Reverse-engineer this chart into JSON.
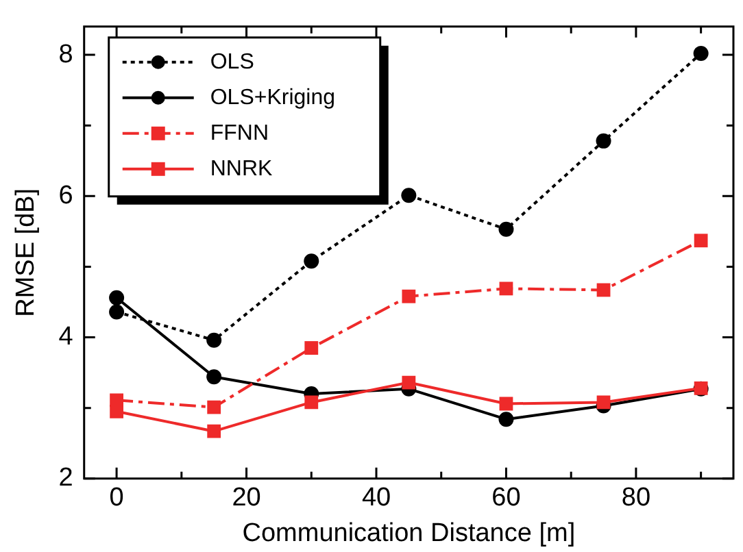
{
  "chart_data": {
    "type": "line",
    "xlabel": "Communication Distance [m]",
    "ylabel": "RMSE [dB]",
    "x": [
      0,
      15,
      30,
      45,
      60,
      75,
      90
    ],
    "xlim": [
      -5,
      95
    ],
    "xticks": [
      0,
      {
        "value": 10,
        "label": null
      },
      20,
      {
        "value": 30,
        "label": null
      },
      40,
      {
        "value": 50,
        "label": null
      },
      60,
      {
        "value": 70,
        "label": null
      },
      80,
      {
        "value": 90,
        "label": null
      }
    ],
    "ylim": [
      2,
      8.4
    ],
    "yticks": [
      2,
      {
        "value": 3,
        "label": null
      },
      4,
      {
        "value": 5,
        "label": null
      },
      6,
      {
        "value": 7,
        "label": null
      },
      8
    ],
    "grid": false,
    "legend": "top left",
    "series": [
      {
        "name": "OLS",
        "color": "#000000",
        "marker": "circle",
        "line_style": "dotted",
        "values": [
          4.36,
          3.96,
          5.08,
          6.01,
          5.53,
          6.78,
          8.02
        ]
      },
      {
        "name": "OLS+Kriging",
        "color": "#000000",
        "marker": "circle",
        "line_style": "solid",
        "values": [
          4.56,
          3.44,
          3.2,
          3.27,
          2.84,
          3.03,
          3.27
        ]
      },
      {
        "name": "FFNN",
        "color": "#ee2a2a",
        "marker": "square",
        "line_style": "dashed",
        "values": [
          3.11,
          3.01,
          3.85,
          4.58,
          4.69,
          4.67,
          5.37
        ]
      },
      {
        "name": "NNRK",
        "color": "#ee2a2a",
        "marker": "square",
        "line_style": "solid",
        "values": [
          2.95,
          2.67,
          3.08,
          3.36,
          3.06,
          3.08,
          3.28
        ]
      }
    ]
  }
}
